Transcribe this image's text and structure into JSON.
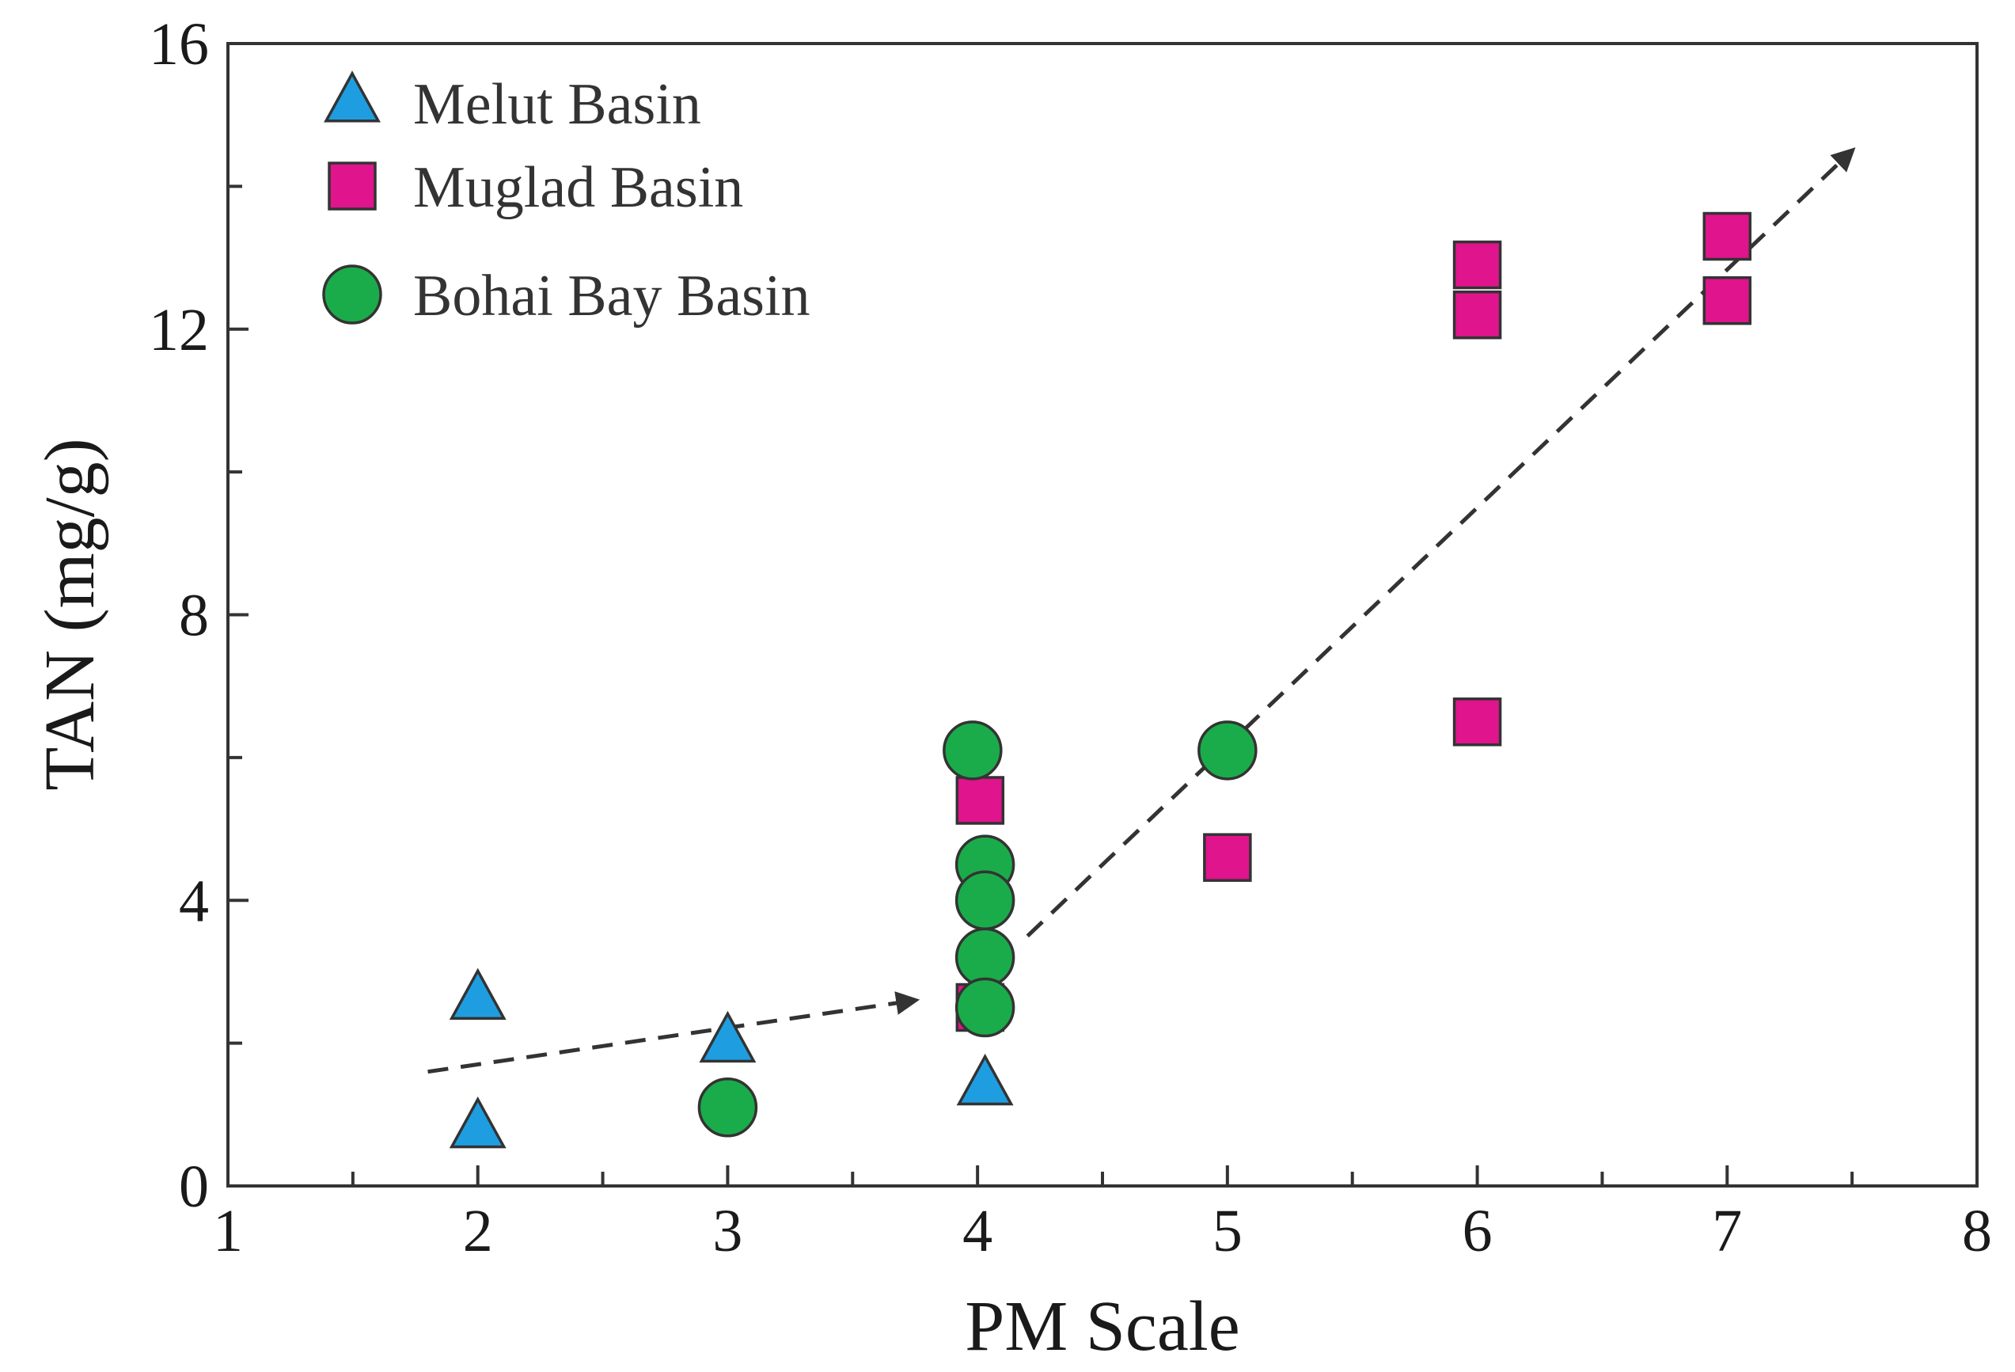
{
  "chart_data": {
    "type": "scatter",
    "xlabel": "PM Scale",
    "ylabel": "TAN (mg/g)",
    "xlim": [
      1,
      8
    ],
    "ylim": [
      0,
      16
    ],
    "xticks": [
      1,
      2,
      3,
      4,
      5,
      6,
      7,
      8
    ],
    "yticks": [
      0,
      4,
      8,
      12,
      16
    ],
    "x_minor_step": 0.5,
    "y_minor_step": 2,
    "grid": false,
    "legend_position": "top-left",
    "series": [
      {
        "name": "Melut Basin",
        "marker": "triangle",
        "color": "#1e9ee0",
        "points": [
          {
            "x": 2,
            "y": 0.8
          },
          {
            "x": 2,
            "y": 2.6
          },
          {
            "x": 3,
            "y": 2.0
          },
          {
            "x": 4.03,
            "y": 1.4
          }
        ]
      },
      {
        "name": "Muglad Basin",
        "marker": "square",
        "color": "#e0148c",
        "points": [
          {
            "x": 4.01,
            "y": 5.4
          },
          {
            "x": 4.01,
            "y": 2.5
          },
          {
            "x": 5,
            "y": 4.6
          },
          {
            "x": 6,
            "y": 6.5
          },
          {
            "x": 6,
            "y": 12.2
          },
          {
            "x": 6,
            "y": 12.9
          },
          {
            "x": 7,
            "y": 12.4
          },
          {
            "x": 7,
            "y": 13.3
          }
        ]
      },
      {
        "name": "Bohai Bay Basin",
        "marker": "circle",
        "color": "#1aac4a",
        "points": [
          {
            "x": 3,
            "y": 1.1
          },
          {
            "x": 3.98,
            "y": 6.1
          },
          {
            "x": 4.03,
            "y": 4.5
          },
          {
            "x": 4.03,
            "y": 4.0
          },
          {
            "x": 4.03,
            "y": 3.2
          },
          {
            "x": 4.03,
            "y": 2.5
          },
          {
            "x": 5,
            "y": 6.1
          }
        ]
      }
    ],
    "trend_arrows": [
      {
        "from": [
          1.8,
          1.6
        ],
        "to": [
          3.75,
          2.6
        ]
      },
      {
        "from": [
          4.2,
          3.5
        ],
        "to": [
          7.5,
          14.5
        ]
      }
    ]
  }
}
